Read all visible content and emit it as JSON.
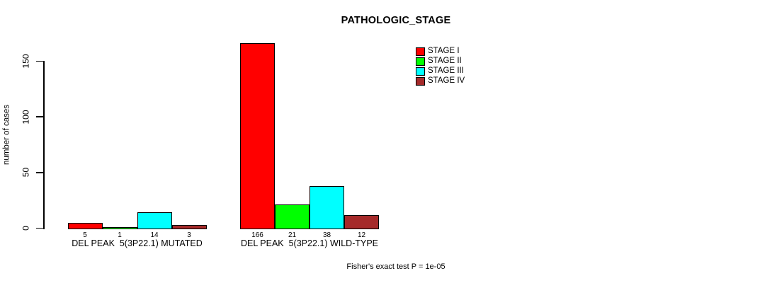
{
  "chart_data": {
    "type": "bar",
    "title": "PATHOLOGIC_STAGE",
    "ylabel": "number of cases",
    "xlabel": "",
    "ylim": [
      0,
      166
    ],
    "yticks": [
      0,
      50,
      100,
      150
    ],
    "grid": false,
    "legend_position": "top-right",
    "bar_value_labels": true,
    "categories": [
      "DEL PEAK  5(3P22.1) MUTATED",
      "DEL PEAK  5(3P22.1) WILD-TYPE"
    ],
    "series": [
      {
        "name": "STAGE I",
        "color": "#FF0000",
        "values": [
          5,
          166
        ]
      },
      {
        "name": "STAGE II",
        "color": "#00FF00",
        "values": [
          1,
          21
        ]
      },
      {
        "name": "STAGE III",
        "color": "#00FFFF",
        "values": [
          14,
          38
        ]
      },
      {
        "name": "STAGE IV",
        "color": "#A52A2A",
        "values": [
          3,
          12
        ]
      }
    ],
    "annotation": "Fisher's exact test P = 1e-05"
  }
}
